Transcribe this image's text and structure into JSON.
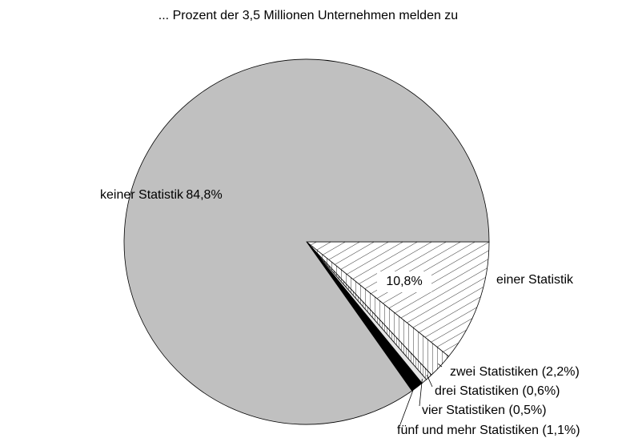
{
  "chart_data": {
    "type": "pie",
    "title": "... Prozent der 3,5 Millionen Unternehmen melden zu",
    "categories": [
      "einer Statistik",
      "zwei Statistiken (2,2%)",
      "drei Statistiken (0,6%)",
      "vier Statistiken (0,5%)",
      "fünf und mehr Statistiken (1,1%)",
      "keiner Statistik"
    ],
    "values": [
      10.8,
      2.2,
      0.6,
      0.5,
      1.1,
      84.8
    ],
    "value_labels": [
      "10,8%",
      null,
      null,
      null,
      null,
      "84,8%"
    ],
    "colors": [
      "#ffffff",
      "#ffffff",
      "#ffffff",
      "#e6e6e6",
      "#000000",
      "#c0c0c0"
    ]
  }
}
